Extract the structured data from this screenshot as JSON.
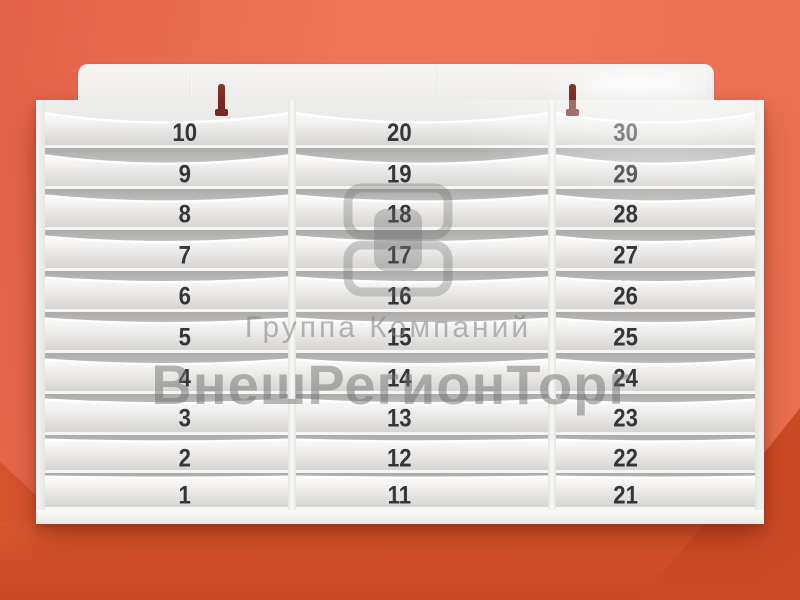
{
  "scene": {
    "description": "wall-mounted 30-slot document organizer on orange wall",
    "slot_count": 30
  },
  "organizer": {
    "columns": [
      {
        "name": "column-1",
        "slots_top_to_bottom": [
          "10",
          "9",
          "8",
          "7",
          "6",
          "5",
          "4",
          "3",
          "2",
          "1"
        ]
      },
      {
        "name": "column-2",
        "slots_top_to_bottom": [
          "20",
          "19",
          "18",
          "17",
          "16",
          "15",
          "14",
          "13",
          "12",
          "11"
        ]
      },
      {
        "name": "column-3",
        "slots_top_to_bottom": [
          "30",
          "29",
          "28",
          "27",
          "26",
          "25",
          "24",
          "23",
          "22",
          "21"
        ]
      }
    ]
  },
  "watermark": {
    "logo": "vneshregiontorg-logo",
    "line1": "Группа Компаний",
    "line2": "ВнешРегионТорг"
  },
  "colors": {
    "wall": "#ee7455",
    "wall_dark": "#d0502a",
    "unit_white": "#f2f1ef",
    "slot_interior": "#c4c3c1",
    "number": "#35353a",
    "hook": "#7a2a23",
    "watermark_gray": "#787878"
  }
}
